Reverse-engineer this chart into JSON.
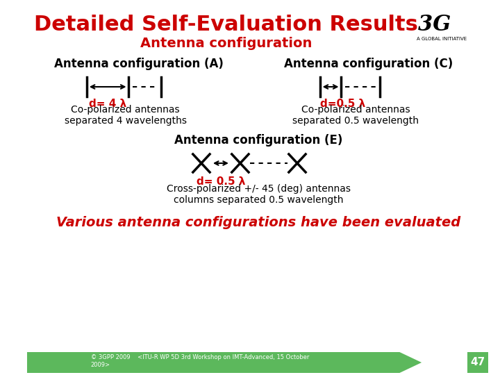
{
  "title": "Detailed Self-Evaluation Results",
  "subtitle": "Antenna configuration",
  "bg_color": "#ffffff",
  "title_color": "#cc0000",
  "black": "#000000",
  "red": "#cc0000",
  "green_bar_color": "#5cb85c",
  "footer_text": "© 3GPP 2009    <ITU-R WP 5D 3rd Workshop on IMT-Advanced, 15 October\n2009>",
  "footer_page": "47",
  "bottom_text": "Various antenna configurations have been evaluated",
  "config_A_title": "Antenna configuration (A)",
  "config_C_title": "Antenna configuration (C)",
  "config_E_title": "Antenna configuration (E)",
  "config_A_label": "d= 4 λ",
  "config_C_label": "d=0.5 λ",
  "config_E_label": "d= 0.5 λ",
  "config_A_desc1": "Co-polarized antennas",
  "config_A_desc2": "separated 4 wavelengths",
  "config_C_desc1": "Co-polarized antennas",
  "config_C_desc2": "separated 0.5 wavelength",
  "config_E_desc1": "Cross-polarized +/- 45 (deg) antennas",
  "config_E_desc2": "columns separated 0.5 wavelength"
}
